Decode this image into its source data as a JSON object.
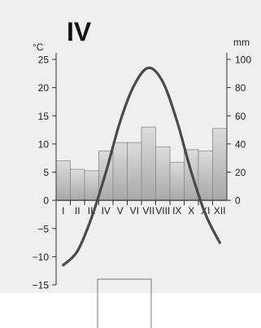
{
  "chart_data": {
    "type": "climate-diagram",
    "title": "IV",
    "months": [
      "I",
      "II",
      "III",
      "IV",
      "V",
      "VI",
      "VII",
      "VIII",
      "IX",
      "X",
      "XI",
      "XII"
    ],
    "temperature": {
      "unit": "°C",
      "values": [
        -11.5,
        -9,
        -3,
        5,
        14,
        20.5,
        23.5,
        21,
        14,
        5,
        -2.5,
        -7.5
      ],
      "ylim": [
        -15,
        25
      ],
      "ticks": [
        25,
        20,
        15,
        10,
        5,
        0,
        -5,
        -10,
        -15
      ]
    },
    "precipitation": {
      "unit": "mm",
      "values": [
        28,
        22,
        21,
        35,
        41,
        41,
        52,
        38,
        27,
        36,
        35,
        51
      ],
      "ylim": [
        0,
        100
      ],
      "ticks": [
        100,
        80,
        60,
        40,
        20,
        0
      ]
    },
    "colors": {
      "background": "#efefef",
      "bar_top": "#dcdcdc",
      "bar_bottom": "#a8a8a8",
      "bar_stroke": "#8a8a8a",
      "line": "#4a4a4a",
      "axis": "#333333"
    }
  }
}
